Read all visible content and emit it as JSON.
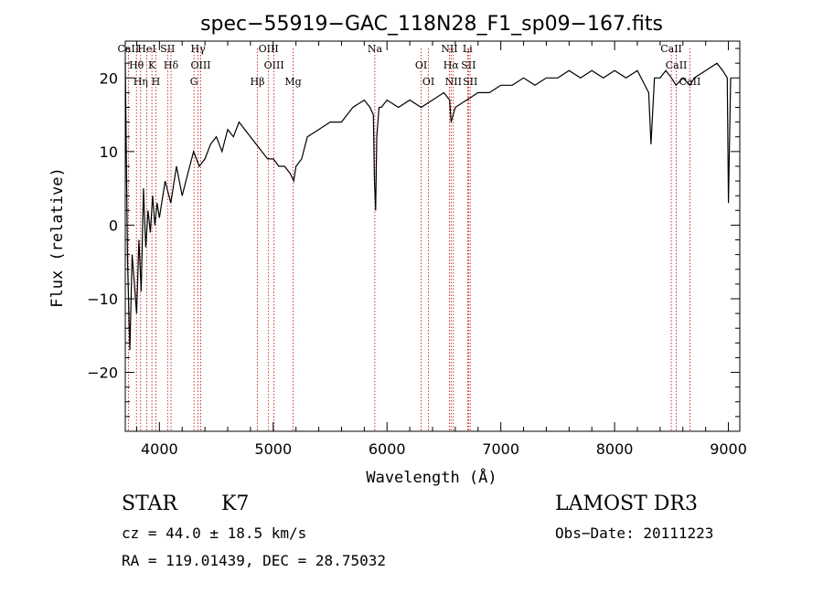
{
  "chart_data": {
    "type": "line",
    "title": "spec−55919−GAC_118N28_F1_sp09−167.fits",
    "xlabel": "Wavelength (Å)",
    "ylabel": "Flux (relative)",
    "xlim": [
      3700,
      9100
    ],
    "ylim": [
      -28,
      25
    ],
    "xticks": [
      4000,
      5000,
      6000,
      7000,
      8000,
      9000
    ],
    "yticks": [
      -20,
      -10,
      0,
      10,
      20
    ],
    "ytick_labels": [
      "−20",
      "−10",
      "0",
      "10",
      "20"
    ],
    "series": [
      {
        "name": "spectrum",
        "x": [
          3700,
          3720,
          3740,
          3760,
          3780,
          3800,
          3820,
          3840,
          3860,
          3880,
          3900,
          3920,
          3940,
          3960,
          3980,
          4000,
          4050,
          4100,
          4150,
          4200,
          4250,
          4300,
          4350,
          4400,
          4450,
          4500,
          4550,
          4600,
          4650,
          4700,
          4750,
          4800,
          4850,
          4900,
          4950,
          5000,
          5050,
          5100,
          5150,
          5180,
          5200,
          5250,
          5300,
          5400,
          5500,
          5600,
          5700,
          5800,
          5850,
          5880,
          5890,
          5900,
          5910,
          5930,
          5950,
          6000,
          6100,
          6200,
          6300,
          6400,
          6500,
          6550,
          6563,
          6600,
          6700,
          6800,
          6900,
          7000,
          7100,
          7200,
          7300,
          7400,
          7500,
          7600,
          7700,
          7800,
          7900,
          8000,
          8100,
          8200,
          8300,
          8320,
          8350,
          8400,
          8450,
          8500,
          8540,
          8600,
          8662,
          8700,
          8800,
          8900,
          8950,
          8990,
          9000,
          9020
        ],
        "y": [
          22,
          -5,
          -17,
          -4,
          -8,
          -12,
          -2,
          -9,
          5,
          -3,
          2,
          -1,
          4,
          0,
          3,
          1,
          6,
          3,
          8,
          4,
          7,
          10,
          8,
          9,
          11,
          12,
          10,
          13,
          12,
          14,
          13,
          12,
          11,
          10,
          9,
          9,
          8,
          8,
          7,
          6,
          8,
          9,
          12,
          13,
          14,
          14,
          16,
          17,
          16,
          15,
          6,
          2,
          12,
          16,
          16,
          17,
          16,
          17,
          16,
          17,
          18,
          17,
          14,
          16,
          17,
          18,
          18,
          19,
          19,
          20,
          19,
          20,
          20,
          21,
          20,
          21,
          20,
          21,
          20,
          21,
          18,
          11,
          20,
          20,
          21,
          20,
          19,
          20,
          19,
          20,
          21,
          22,
          21,
          20,
          3,
          20
        ]
      }
    ],
    "lines": [
      {
        "name": "CaII",
        "wave": 3727
      },
      {
        "name": "Hθ",
        "wave": 3798
      },
      {
        "name": "Hη",
        "wave": 3835
      },
      {
        "name": "HeI",
        "wave": 3889
      },
      {
        "name": "K",
        "wave": 3934
      },
      {
        "name": "H",
        "wave": 3969
      },
      {
        "name": "SII",
        "wave": 4072
      },
      {
        "name": "Hδ",
        "wave": 4102
      },
      {
        "name": "G",
        "wave": 4304
      },
      {
        "name": "Hγ",
        "wave": 4340
      },
      {
        "name": "OIII",
        "wave": 4363
      },
      {
        "name": "Hβ",
        "wave": 4861
      },
      {
        "name": "OIII",
        "wave": 4959
      },
      {
        "name": "OIII",
        "wave": 5007
      },
      {
        "name": "Mg",
        "wave": 5175
      },
      {
        "name": "Na",
        "wave": 5893
      },
      {
        "name": "OI",
        "wave": 6300
      },
      {
        "name": "OI",
        "wave": 6364
      },
      {
        "name": "NII",
        "wave": 6548
      },
      {
        "name": "Hα",
        "wave": 6563
      },
      {
        "name": "NII",
        "wave": 6583
      },
      {
        "name": "Li",
        "wave": 6708
      },
      {
        "name": "SII",
        "wave": 6716
      },
      {
        "name": "SII",
        "wave": 6731
      },
      {
        "name": "CaII",
        "wave": 8498
      },
      {
        "name": "CaII",
        "wave": 8542
      },
      {
        "name": "CaII",
        "wave": 8662
      }
    ]
  },
  "info": {
    "class_label": "STAR",
    "subclass": "K7",
    "survey": "LAMOST DR3",
    "cz": "cz = 44.0 ± 18.5 km/s",
    "obs_date": "Obs−Date: 20111223",
    "coords": "RA = 119.01439, DEC =  28.75032"
  }
}
